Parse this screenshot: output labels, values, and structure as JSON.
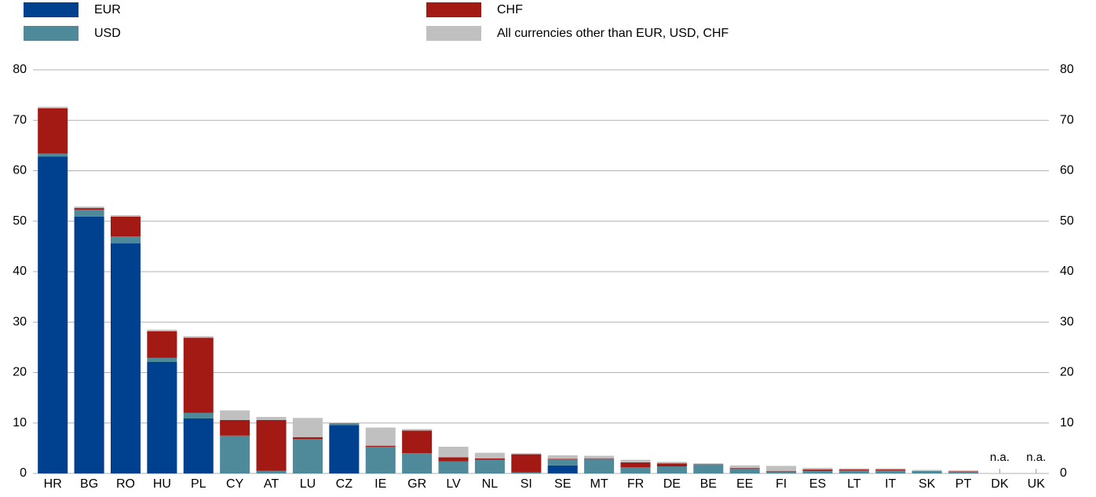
{
  "chart_data": {
    "type": "stacked-bar",
    "categories": [
      "HR",
      "BG",
      "RO",
      "HU",
      "PL",
      "CY",
      "AT",
      "LU",
      "CZ",
      "IE",
      "GR",
      "LV",
      "NL",
      "SI",
      "SE",
      "MT",
      "FR",
      "DE",
      "BE",
      "EE",
      "FI",
      "ES",
      "LT",
      "IT",
      "SK",
      "PT",
      "DK",
      "UK"
    ],
    "series": [
      {
        "name": "EUR",
        "color": "#00418f",
        "values": [
          62.8,
          50.9,
          45.6,
          22.1,
          10.9,
          0,
          0,
          0,
          9.6,
          0,
          0,
          0,
          0,
          0,
          1.6,
          0,
          0,
          0,
          0,
          0,
          0,
          0,
          0,
          0,
          0,
          0,
          null,
          null
        ]
      },
      {
        "name": "USD",
        "color": "#4e8a9a",
        "values": [
          0.6,
          1.4,
          1.4,
          0.8,
          1.1,
          7.5,
          0.5,
          6.8,
          0.2,
          5.3,
          4.0,
          2.4,
          2.7,
          0.2,
          1.2,
          2.9,
          1.2,
          1.4,
          1.7,
          1.0,
          0.4,
          0.5,
          0.6,
          0.6,
          0.5,
          0.3,
          null,
          null
        ]
      },
      {
        "name": "CHF",
        "color": "#a31914",
        "values": [
          9.0,
          0.3,
          3.9,
          5.3,
          14.9,
          3.1,
          10.1,
          0.4,
          0.1,
          0.2,
          4.5,
          0.8,
          0.3,
          3.6,
          0.1,
          0.1,
          1.0,
          0.6,
          0.1,
          0.1,
          0.1,
          0.3,
          0.2,
          0.2,
          0.0,
          0.1,
          null,
          null
        ]
      },
      {
        "name": "All currencies other than EUR, USD, CHF",
        "color": "#c0c0c0",
        "values": [
          0.3,
          0.3,
          0.3,
          0.3,
          0.3,
          1.9,
          0.6,
          3.8,
          0.2,
          3.6,
          0.3,
          2.1,
          1.1,
          0.2,
          0.7,
          0.5,
          0.5,
          0.3,
          0.2,
          0.5,
          1.0,
          0.3,
          0.2,
          0.2,
          0.2,
          0.2,
          null,
          null
        ]
      }
    ],
    "missing_label": "n.a.",
    "ylim": [
      0,
      80
    ],
    "yticks": [
      0,
      10,
      20,
      30,
      40,
      50,
      60,
      70,
      80
    ],
    "grid": true,
    "right_axis": true
  }
}
